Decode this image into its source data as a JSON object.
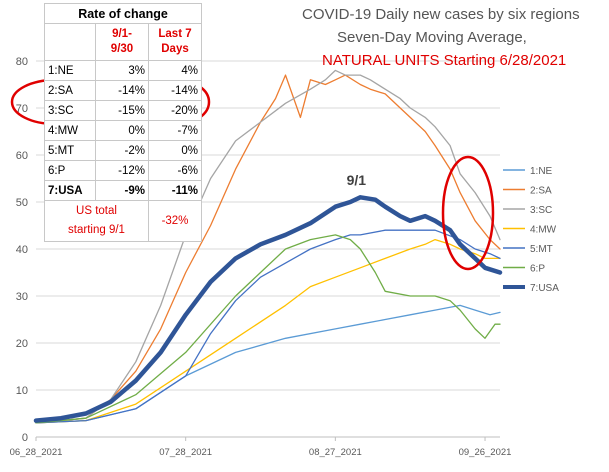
{
  "chart_data": {
    "type": "line",
    "title": "COVID-19 Daily new cases by six regions",
    "subtitle": "Seven-Day Moving Average,",
    "subtitle2": "NATURAL UNITS Starting 6/28/2021",
    "xlabel": "",
    "ylabel": "",
    "ylim": [
      0,
      80
    ],
    "yticks": [
      "0",
      "10",
      "20",
      "30",
      "40",
      "50",
      "60",
      "70",
      "80"
    ],
    "xticks": [
      "06_28_2021",
      "07_28_2021",
      "08_27_2021",
      "09_26_2021"
    ],
    "xtick_days": [
      0,
      30,
      60,
      90
    ],
    "xlim": [
      0,
      93
    ],
    "grid": "horizontal",
    "legend_position": "right",
    "annotation": "9/1",
    "annotation_day": 65,
    "series": [
      {
        "name": "1:NE",
        "color": "#5b9bd5",
        "width": 1.3,
        "x": [
          0,
          10,
          20,
          30,
          40,
          50,
          60,
          65,
          70,
          75,
          80,
          85,
          88,
          91,
          93
        ],
        "y": [
          3,
          3.5,
          6,
          13,
          18,
          21,
          23,
          24,
          25,
          26,
          27,
          28,
          27,
          26,
          26.5
        ]
      },
      {
        "name": "2:SA",
        "color": "#ed7d31",
        "width": 1.3,
        "x": [
          0,
          10,
          15,
          20,
          25,
          30,
          35,
          40,
          45,
          48,
          50,
          53,
          55,
          58,
          60,
          62,
          65,
          67,
          70,
          73,
          75,
          78,
          80,
          83,
          85,
          88,
          91,
          93
        ],
        "y": [
          3,
          4,
          8,
          14,
          23,
          35,
          45,
          57,
          67,
          72,
          77,
          68,
          76,
          75,
          76,
          77,
          75,
          74,
          73,
          70,
          68,
          65,
          62,
          57,
          52,
          46,
          42,
          40
        ]
      },
      {
        "name": "3:SC",
        "color": "#a5a5a5",
        "width": 1.3,
        "x": [
          0,
          10,
          15,
          20,
          25,
          30,
          35,
          40,
          45,
          50,
          55,
          58,
          60,
          62,
          65,
          67,
          70,
          73,
          75,
          78,
          80,
          83,
          85,
          88,
          91,
          93
        ],
        "y": [
          3,
          4,
          8,
          16,
          28,
          43,
          55,
          63,
          67,
          71,
          74,
          76,
          78,
          77,
          77,
          76,
          74,
          72,
          70,
          68,
          66,
          62,
          56,
          52,
          47,
          42
        ]
      },
      {
        "name": "4:MW",
        "color": "#ffc000",
        "width": 1.3,
        "x": [
          0,
          10,
          20,
          30,
          40,
          50,
          55,
          60,
          65,
          70,
          75,
          78,
          80,
          83,
          85,
          88,
          90,
          93
        ],
        "y": [
          3,
          3.5,
          7,
          14,
          21,
          28,
          32,
          34,
          36,
          38,
          40,
          41,
          42,
          41,
          40,
          39,
          38,
          38
        ]
      },
      {
        "name": "5:MT",
        "color": "#4472c4",
        "width": 1.3,
        "x": [
          0,
          10,
          20,
          30,
          35,
          40,
          45,
          50,
          55,
          60,
          63,
          65,
          70,
          75,
          80,
          85,
          88,
          91,
          93
        ],
        "y": [
          3,
          3.5,
          6,
          13,
          22,
          29,
          34,
          37,
          40,
          42,
          43,
          43,
          44,
          44,
          44,
          42,
          40,
          39,
          38
        ]
      },
      {
        "name": "6:P",
        "color": "#70ad47",
        "width": 1.3,
        "x": [
          0,
          10,
          20,
          30,
          40,
          45,
          50,
          55,
          60,
          63,
          65,
          68,
          70,
          75,
          80,
          83,
          85,
          88,
          90,
          92,
          93
        ],
        "y": [
          3,
          4,
          9,
          18,
          30,
          35,
          40,
          42,
          43,
          42,
          40,
          35,
          31,
          30,
          30,
          29,
          27,
          23,
          21,
          24,
          24
        ]
      },
      {
        "name": "7:USA",
        "color": "#2f5597",
        "width": 4.5,
        "x": [
          0,
          5,
          10,
          15,
          20,
          25,
          30,
          35,
          40,
          45,
          50,
          55,
          60,
          63,
          65,
          68,
          70,
          73,
          75,
          78,
          80,
          83,
          85,
          88,
          90,
          93
        ],
        "y": [
          3.5,
          4,
          5,
          7.5,
          12,
          18,
          26,
          33,
          38,
          41,
          43,
          45.5,
          49,
          50,
          51,
          50.5,
          49,
          47,
          46,
          47,
          46,
          44,
          41,
          38,
          36,
          35
        ]
      }
    ]
  },
  "rate_table": {
    "title": "Rate of change",
    "col1_header": "9/1-\n9/30",
    "col2_header": "Last 7\nDays",
    "rows": [
      {
        "label": "1:NE",
        "v1": "3%",
        "v2": "4%",
        "bold": false
      },
      {
        "label": "2:SA",
        "v1": "-14%",
        "v2": "-14%",
        "bold": false
      },
      {
        "label": "3:SC",
        "v1": "-15%",
        "v2": "-20%",
        "bold": false
      },
      {
        "label": "4:MW",
        "v1": "0%",
        "v2": "-7%",
        "bold": false
      },
      {
        "label": "5:MT",
        "v1": "-2%",
        "v2": "0%",
        "bold": false
      },
      {
        "label": "6:P",
        "v1": "-12%",
        "v2": "-6%",
        "bold": false
      },
      {
        "label": "7:USA",
        "v1": "-9%",
        "v2": "-11%",
        "bold": true
      }
    ],
    "note": "US total\nstarting 9/1",
    "note_value": "-32%"
  },
  "highlight_color": "#e00000"
}
